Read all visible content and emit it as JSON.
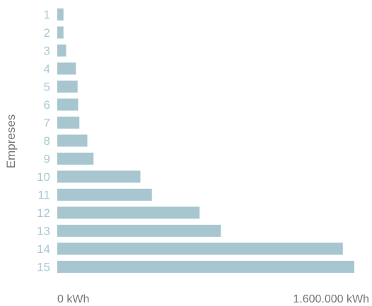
{
  "chart_data": {
    "type": "bar",
    "orientation": "horizontal",
    "title": "",
    "xlabel": "",
    "ylabel": "Empreses",
    "categories": [
      "1",
      "2",
      "3",
      "4",
      "5",
      "6",
      "7",
      "8",
      "9",
      "10",
      "11",
      "12",
      "13",
      "14",
      "15"
    ],
    "values": [
      35000,
      35000,
      50000,
      105000,
      115000,
      118000,
      125000,
      170000,
      205000,
      470000,
      535000,
      805000,
      925000,
      1615000,
      1680000
    ],
    "xlim": [
      0,
      1680000
    ],
    "x_tick_labels": [
      "0 kWh",
      "1.600.000 kWh"
    ],
    "x_tick_values": [
      0,
      1600000
    ],
    "bar_color": "#a7c6d0",
    "tick_label_color": "#a9c9d3",
    "grid": false,
    "legend": "none"
  }
}
